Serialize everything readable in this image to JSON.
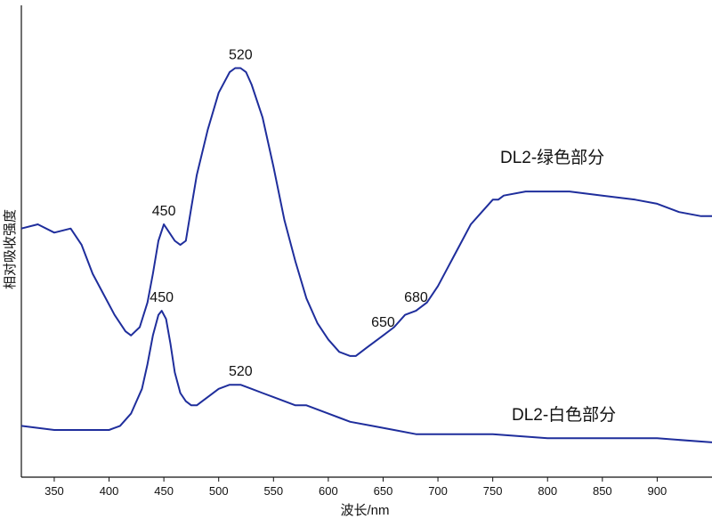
{
  "chart_data": {
    "type": "line",
    "title": "",
    "xlabel": "波长/nm",
    "ylabel": "相对吸收强度",
    "xlim": [
      320,
      950
    ],
    "ylim": [
      0,
      1
    ],
    "x_ticks": [
      350,
      400,
      450,
      500,
      550,
      600,
      650,
      700,
      750,
      800,
      850,
      900
    ],
    "y_ticks": [],
    "grid": false,
    "legend": "none",
    "line_color": "#1f2e9c",
    "series": [
      {
        "name": "DL2-绿色部分",
        "x": [
          320,
          335,
          350,
          365,
          375,
          385,
          395,
          405,
          415,
          420,
          428,
          435,
          440,
          445,
          450,
          455,
          460,
          465,
          470,
          475,
          480,
          490,
          500,
          510,
          515,
          520,
          525,
          530,
          540,
          550,
          560,
          570,
          580,
          590,
          600,
          610,
          620,
          625,
          635,
          645,
          650,
          660,
          670,
          680,
          690,
          700,
          710,
          720,
          730,
          740,
          750,
          755,
          760,
          780,
          800,
          820,
          850,
          880,
          900,
          920,
          940,
          950
        ],
        "y": [
          0.57,
          0.58,
          0.56,
          0.57,
          0.53,
          0.46,
          0.41,
          0.36,
          0.32,
          0.31,
          0.33,
          0.39,
          0.46,
          0.54,
          0.58,
          0.56,
          0.54,
          0.53,
          0.54,
          0.62,
          0.7,
          0.81,
          0.9,
          0.95,
          0.96,
          0.96,
          0.95,
          0.92,
          0.84,
          0.72,
          0.59,
          0.49,
          0.4,
          0.34,
          0.3,
          0.27,
          0.26,
          0.26,
          0.28,
          0.3,
          0.31,
          0.33,
          0.36,
          0.37,
          0.39,
          0.43,
          0.48,
          0.53,
          0.58,
          0.61,
          0.64,
          0.64,
          0.65,
          0.66,
          0.66,
          0.66,
          0.65,
          0.64,
          0.63,
          0.61,
          0.6,
          0.6
        ]
      },
      {
        "name": "DL2-白色部分",
        "x": [
          320,
          350,
          380,
          400,
          410,
          420,
          430,
          435,
          440,
          445,
          448,
          452,
          456,
          460,
          465,
          470,
          475,
          480,
          485,
          490,
          500,
          510,
          520,
          530,
          540,
          550,
          560,
          570,
          580,
          590,
          600,
          620,
          640,
          660,
          680,
          700,
          750,
          800,
          850,
          900,
          950
        ],
        "y": [
          0.09,
          0.08,
          0.08,
          0.08,
          0.09,
          0.12,
          0.18,
          0.24,
          0.31,
          0.36,
          0.37,
          0.35,
          0.29,
          0.22,
          0.17,
          0.15,
          0.14,
          0.14,
          0.15,
          0.16,
          0.18,
          0.19,
          0.19,
          0.18,
          0.17,
          0.16,
          0.15,
          0.14,
          0.14,
          0.13,
          0.12,
          0.1,
          0.09,
          0.08,
          0.07,
          0.07,
          0.07,
          0.06,
          0.06,
          0.06,
          0.05
        ]
      }
    ],
    "annotations": [
      {
        "text": "520",
        "x": 520,
        "y": 0.96
      },
      {
        "text": "450",
        "x": 450,
        "y": 0.58
      },
      {
        "text": "650",
        "x": 650,
        "y": 0.31
      },
      {
        "text": "680",
        "x": 680,
        "y": 0.37
      },
      {
        "text": "450",
        "x": 448,
        "y": 0.37
      },
      {
        "text": "520",
        "x": 520,
        "y": 0.19
      }
    ]
  }
}
